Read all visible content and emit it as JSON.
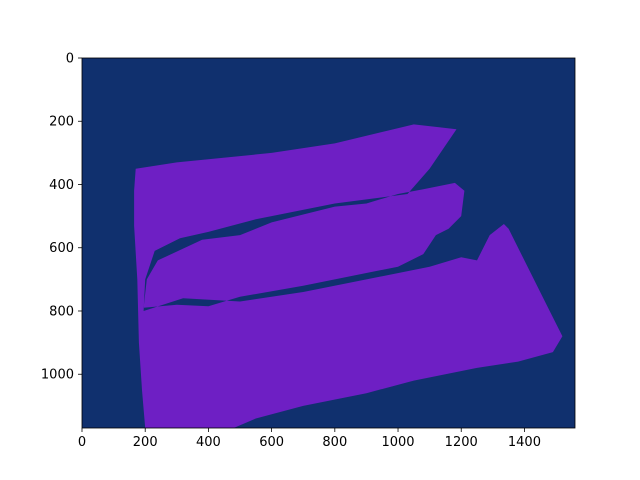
{
  "chart_data": {
    "type": "heatmap",
    "title": "",
    "xlabel": "",
    "ylabel": "",
    "xlim": [
      0,
      1560
    ],
    "ylim": [
      1170,
      0
    ],
    "y_inverted": true,
    "grid": false,
    "legend": "none",
    "x_ticks": [
      0,
      200,
      400,
      600,
      800,
      1000,
      1200,
      1400
    ],
    "y_ticks": [
      0,
      200,
      400,
      600,
      800,
      1000
    ],
    "x_tick_labels": [
      "0",
      "200",
      "400",
      "600",
      "800",
      "1000",
      "1200",
      "1400"
    ],
    "y_tick_labels": [
      "0",
      "200",
      "400",
      "600",
      "800",
      "1000"
    ],
    "classes": [
      {
        "value": 0,
        "color": "#10306e"
      },
      {
        "value": 1,
        "color": "#6e1fc4"
      }
    ],
    "region_outer": [
      [
        170,
        350
      ],
      [
        300,
        330
      ],
      [
        600,
        300
      ],
      [
        800,
        270
      ],
      [
        1050,
        210
      ],
      [
        1185,
        225
      ],
      [
        1100,
        350
      ],
      [
        1030,
        430
      ],
      [
        800,
        460
      ],
      [
        600,
        500
      ],
      [
        550,
        510
      ],
      [
        400,
        550
      ],
      [
        310,
        570
      ],
      [
        230,
        610
      ],
      [
        200,
        700
      ],
      [
        195,
        800
      ],
      [
        320,
        760
      ],
      [
        500,
        770
      ],
      [
        700,
        740
      ],
      [
        900,
        700
      ],
      [
        1100,
        660
      ],
      [
        1200,
        630
      ],
      [
        1250,
        640
      ],
      [
        1290,
        560
      ],
      [
        1335,
        525
      ],
      [
        1350,
        540
      ],
      [
        1400,
        640
      ],
      [
        1480,
        800
      ],
      [
        1520,
        880
      ],
      [
        1490,
        930
      ],
      [
        1380,
        960
      ],
      [
        1250,
        980
      ],
      [
        1050,
        1020
      ],
      [
        900,
        1060
      ],
      [
        700,
        1100
      ],
      [
        550,
        1140
      ],
      [
        480,
        1170
      ],
      [
        200,
        1170
      ],
      [
        190,
        1050
      ],
      [
        180,
        900
      ],
      [
        175,
        700
      ],
      [
        165,
        530
      ],
      [
        165,
        420
      ]
    ],
    "region_hole": [
      [
        195,
        790
      ],
      [
        205,
        700
      ],
      [
        240,
        640
      ],
      [
        380,
        575
      ],
      [
        500,
        560
      ],
      [
        600,
        520
      ],
      [
        800,
        470
      ],
      [
        900,
        460
      ],
      [
        1000,
        430
      ],
      [
        1080,
        415
      ],
      [
        1180,
        395
      ],
      [
        1210,
        420
      ],
      [
        1200,
        500
      ],
      [
        1160,
        540
      ],
      [
        1120,
        560
      ],
      [
        1080,
        620
      ],
      [
        1000,
        660
      ],
      [
        900,
        680
      ],
      [
        700,
        720
      ],
      [
        500,
        755
      ],
      [
        400,
        785
      ],
      [
        300,
        780
      ]
    ]
  }
}
